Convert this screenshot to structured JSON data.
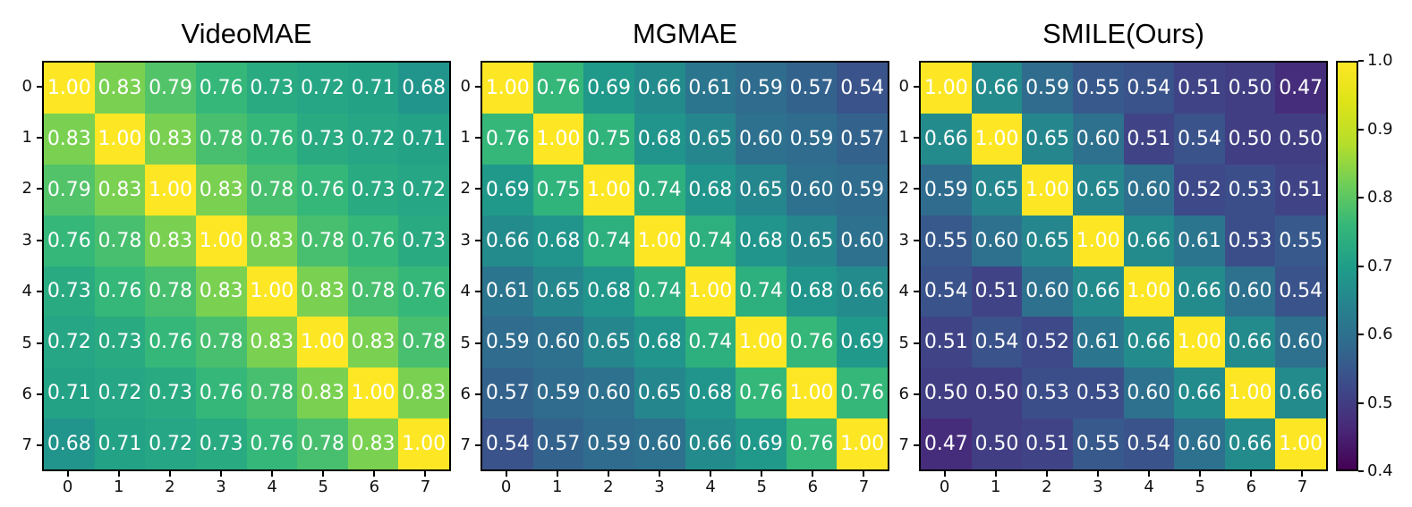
{
  "figure": {
    "background": "#ffffff",
    "colormap": "viridis",
    "colormap_stops": [
      "#440154",
      "#482878",
      "#3e4989",
      "#31688e",
      "#26828e",
      "#1f9e89",
      "#35b779",
      "#6ece58",
      "#b5de2b",
      "#dde318",
      "#fde725"
    ],
    "annotation_color": "#ffffff",
    "axis_color": "#000000"
  },
  "chart_data": [
    {
      "type": "heatmap",
      "title": "VideoMAE",
      "x_ticklabels": [
        "0",
        "1",
        "2",
        "3",
        "4",
        "5",
        "6",
        "7"
      ],
      "y_ticklabels": [
        "0",
        "1",
        "2",
        "3",
        "4",
        "5",
        "6",
        "7"
      ],
      "vmin": 0.4,
      "vmax": 1.0,
      "values": [
        [
          1.0,
          0.83,
          0.79,
          0.76,
          0.73,
          0.72,
          0.71,
          0.68
        ],
        [
          0.83,
          1.0,
          0.83,
          0.78,
          0.76,
          0.73,
          0.72,
          0.71
        ],
        [
          0.79,
          0.83,
          1.0,
          0.83,
          0.78,
          0.76,
          0.73,
          0.72
        ],
        [
          0.76,
          0.78,
          0.83,
          1.0,
          0.83,
          0.78,
          0.76,
          0.73
        ],
        [
          0.73,
          0.76,
          0.78,
          0.83,
          1.0,
          0.83,
          0.78,
          0.76
        ],
        [
          0.72,
          0.73,
          0.76,
          0.78,
          0.83,
          1.0,
          0.83,
          0.78
        ],
        [
          0.71,
          0.72,
          0.73,
          0.76,
          0.78,
          0.83,
          1.0,
          0.83
        ],
        [
          0.68,
          0.71,
          0.72,
          0.73,
          0.76,
          0.78,
          0.83,
          1.0
        ]
      ]
    },
    {
      "type": "heatmap",
      "title": "MGMAE",
      "x_ticklabels": [
        "0",
        "1",
        "2",
        "3",
        "4",
        "5",
        "6",
        "7"
      ],
      "y_ticklabels": [
        "0",
        "1",
        "2",
        "3",
        "4",
        "5",
        "6",
        "7"
      ],
      "vmin": 0.4,
      "vmax": 1.0,
      "values": [
        [
          1.0,
          0.76,
          0.69,
          0.66,
          0.61,
          0.59,
          0.57,
          0.54
        ],
        [
          0.76,
          1.0,
          0.75,
          0.68,
          0.65,
          0.6,
          0.59,
          0.57
        ],
        [
          0.69,
          0.75,
          1.0,
          0.74,
          0.68,
          0.65,
          0.6,
          0.59
        ],
        [
          0.66,
          0.68,
          0.74,
          1.0,
          0.74,
          0.68,
          0.65,
          0.6
        ],
        [
          0.61,
          0.65,
          0.68,
          0.74,
          1.0,
          0.74,
          0.68,
          0.66
        ],
        [
          0.59,
          0.6,
          0.65,
          0.68,
          0.74,
          1.0,
          0.76,
          0.69
        ],
        [
          0.57,
          0.59,
          0.6,
          0.65,
          0.68,
          0.76,
          1.0,
          0.76
        ],
        [
          0.54,
          0.57,
          0.59,
          0.6,
          0.66,
          0.69,
          0.76,
          1.0
        ]
      ]
    },
    {
      "type": "heatmap",
      "title": "SMILE(Ours)",
      "x_ticklabels": [
        "0",
        "1",
        "2",
        "3",
        "4",
        "5",
        "6",
        "7"
      ],
      "y_ticklabels": [
        "0",
        "1",
        "2",
        "3",
        "4",
        "5",
        "6",
        "7"
      ],
      "vmin": 0.4,
      "vmax": 1.0,
      "values": [
        [
          1.0,
          0.66,
          0.59,
          0.55,
          0.54,
          0.51,
          0.5,
          0.47
        ],
        [
          0.66,
          1.0,
          0.65,
          0.6,
          0.51,
          0.54,
          0.5,
          0.5
        ],
        [
          0.59,
          0.65,
          1.0,
          0.65,
          0.6,
          0.52,
          0.53,
          0.51
        ],
        [
          0.55,
          0.6,
          0.65,
          1.0,
          0.66,
          0.61,
          0.53,
          0.55
        ],
        [
          0.54,
          0.51,
          0.6,
          0.66,
          1.0,
          0.66,
          0.6,
          0.54
        ],
        [
          0.51,
          0.54,
          0.52,
          0.61,
          0.66,
          1.0,
          0.66,
          0.6
        ],
        [
          0.5,
          0.5,
          0.53,
          0.53,
          0.6,
          0.66,
          1.0,
          0.66
        ],
        [
          0.47,
          0.5,
          0.51,
          0.55,
          0.54,
          0.6,
          0.66,
          1.0
        ]
      ]
    }
  ],
  "colorbar": {
    "vmin": 0.4,
    "vmax": 1.0,
    "ticks": [
      {
        "value": 1.0,
        "label": "1.0"
      },
      {
        "value": 0.9,
        "label": "0.9"
      },
      {
        "value": 0.8,
        "label": "0.8"
      },
      {
        "value": 0.7,
        "label": "0.7"
      },
      {
        "value": 0.6,
        "label": "0.6"
      },
      {
        "value": 0.5,
        "label": "0.5"
      },
      {
        "value": 0.4,
        "label": "0.4"
      }
    ]
  }
}
